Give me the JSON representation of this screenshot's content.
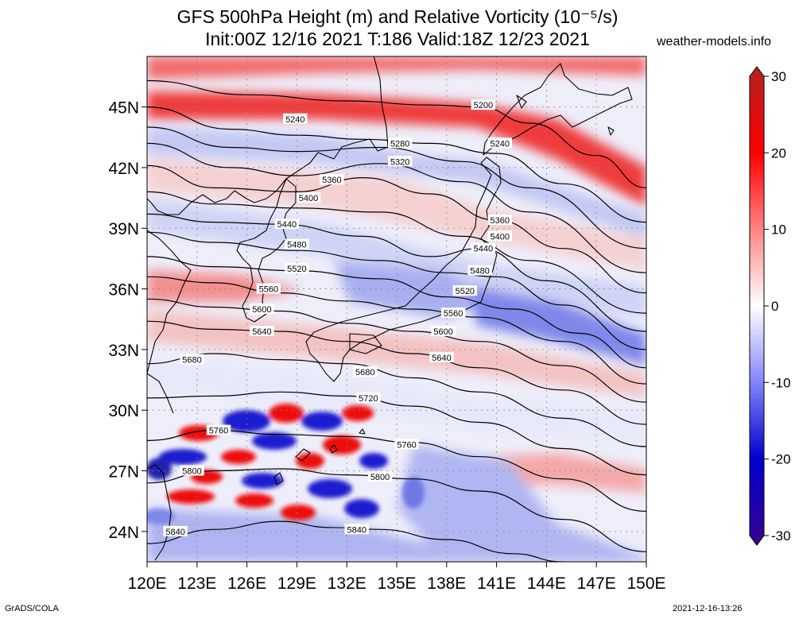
{
  "header": {
    "title_line1": "GFS 500hPa Height (m) and Relative Vorticity (10⁻⁵/s)",
    "title_line2": "Init:00Z 12/16 2021 T:186 Valid:18Z 12/23 2021",
    "site": "weather-models.info"
  },
  "footer": {
    "left": "GrADS/COLA",
    "right": "2021-12-16-13:26"
  },
  "map": {
    "lon_range": [
      120,
      150
    ],
    "lat_range": [
      22.5,
      47.5
    ],
    "lon_ticks": [
      {
        "v": 120,
        "label": "120E"
      },
      {
        "v": 123,
        "label": "123E"
      },
      {
        "v": 126,
        "label": "126E"
      },
      {
        "v": 129,
        "label": "129E"
      },
      {
        "v": 132,
        "label": "132E"
      },
      {
        "v": 135,
        "label": "135E"
      },
      {
        "v": 138,
        "label": "138E"
      },
      {
        "v": 141,
        "label": "141E"
      },
      {
        "v": 144,
        "label": "144E"
      },
      {
        "v": 147,
        "label": "147E"
      },
      {
        "v": 150,
        "label": "150E"
      }
    ],
    "lat_ticks": [
      {
        "v": 24,
        "label": "24N"
      },
      {
        "v": 27,
        "label": "27N"
      },
      {
        "v": 30,
        "label": "30N"
      },
      {
        "v": 33,
        "label": "33N"
      },
      {
        "v": 36,
        "label": "36N"
      },
      {
        "v": 39,
        "label": "39N"
      },
      {
        "v": 42,
        "label": "42N"
      },
      {
        "v": 45,
        "label": "45N"
      }
    ],
    "contours": [
      {
        "label": "5200",
        "pts": [
          [
            120,
            46.3
          ],
          [
            126,
            45.6
          ],
          [
            132,
            45.3
          ],
          [
            137,
            45.1
          ],
          [
            140,
            45.0
          ],
          [
            143,
            44.2
          ],
          [
            147,
            42.6
          ],
          [
            150,
            41.0
          ]
        ],
        "lab": [
          140.2,
          45.1
        ]
      },
      {
        "label": "5240",
        "pts": [
          [
            120,
            45.0
          ],
          [
            125,
            43.9
          ],
          [
            129,
            43.6
          ],
          [
            133,
            43.4
          ],
          [
            137,
            43.2
          ],
          [
            141,
            42.7
          ],
          [
            145,
            41.2
          ],
          [
            150,
            39.3
          ]
        ],
        "lab": [
          141.2,
          43.2
        ],
        "lab2": [
          128.9,
          44.4
        ]
      },
      {
        "label": "5280",
        "pts": [
          [
            120,
            44.0
          ],
          [
            125,
            43.0
          ],
          [
            129,
            42.8
          ],
          [
            134,
            43.0
          ],
          [
            139,
            42.3
          ],
          [
            143,
            41.0
          ],
          [
            150,
            38.0
          ]
        ],
        "lab": [
          135.2,
          43.2
        ]
      },
      {
        "label": "5320",
        "pts": [
          [
            120,
            43.2
          ],
          [
            125,
            42.0
          ],
          [
            129,
            41.6
          ],
          [
            134,
            42.2
          ],
          [
            139,
            41.3
          ],
          [
            143,
            39.8
          ],
          [
            150,
            36.8
          ]
        ],
        "lab": [
          135.2,
          42.3
        ]
      },
      {
        "label": "5360",
        "pts": [
          [
            120,
            42.1
          ],
          [
            124,
            41.0
          ],
          [
            129,
            40.8
          ],
          [
            133,
            41.5
          ],
          [
            137,
            40.7
          ],
          [
            141,
            39.4
          ],
          [
            145,
            38.0
          ],
          [
            150,
            35.8
          ]
        ],
        "lab": [
          131.1,
          41.4
        ],
        "lab2": [
          141.2,
          39.4
        ]
      },
      {
        "label": "5400",
        "pts": [
          [
            120,
            40.8
          ],
          [
            124,
            40.2
          ],
          [
            129,
            40.0
          ],
          [
            134,
            39.8
          ],
          [
            139,
            38.6
          ],
          [
            143,
            37.4
          ],
          [
            150,
            34.8
          ]
        ],
        "lab": [
          129.7,
          40.5
        ],
        "lab2": [
          141.2,
          38.6
        ]
      },
      {
        "label": "5440",
        "pts": [
          [
            120,
            39.7
          ],
          [
            124,
            39.3
          ],
          [
            128,
            39.2
          ],
          [
            133,
            38.6
          ],
          [
            137,
            37.6
          ],
          [
            140,
            38.0
          ],
          [
            144,
            36.4
          ],
          [
            150,
            33.9
          ]
        ],
        "lab": [
          128.4,
          39.2
        ],
        "lab2": [
          140.2,
          38.0
        ]
      },
      {
        "label": "5480",
        "pts": [
          [
            120,
            38.8
          ],
          [
            124,
            38.3
          ],
          [
            129,
            37.9
          ],
          [
            134,
            37.4
          ],
          [
            138,
            36.8
          ],
          [
            141,
            36.6
          ],
          [
            145,
            35.2
          ],
          [
            150,
            33.0
          ]
        ],
        "lab": [
          129.0,
          38.2
        ],
        "lab2": [
          140.0,
          36.9
        ]
      },
      {
        "label": "5520",
        "pts": [
          [
            120,
            37.6
          ],
          [
            124,
            37.1
          ],
          [
            129,
            36.9
          ],
          [
            134,
            36.5
          ],
          [
            138,
            35.6
          ],
          [
            142,
            35.0
          ],
          [
            146,
            33.8
          ],
          [
            150,
            32.1
          ]
        ],
        "lab": [
          129.0,
          37.0
        ],
        "lab2": [
          139.1,
          35.9
        ]
      },
      {
        "label": "5560",
        "pts": [
          [
            120,
            36.6
          ],
          [
            124,
            36.3
          ],
          [
            128,
            35.8
          ],
          [
            132,
            35.4
          ],
          [
            136,
            35.0
          ],
          [
            140,
            34.6
          ],
          [
            145,
            33.4
          ],
          [
            150,
            31.3
          ]
        ],
        "lab": [
          127.3,
          36.0
        ],
        "lab2": [
          138.4,
          34.8
        ]
      },
      {
        "label": "5600",
        "pts": [
          [
            120,
            35.5
          ],
          [
            124,
            35.1
          ],
          [
            128,
            34.9
          ],
          [
            132,
            34.3
          ],
          [
            136,
            33.9
          ],
          [
            140,
            33.4
          ],
          [
            145,
            32.2
          ],
          [
            150,
            30.4
          ]
        ],
        "lab": [
          126.9,
          35.0
        ],
        "lab2": [
          137.8,
          33.9
        ]
      },
      {
        "label": "5640",
        "pts": [
          [
            120,
            34.4
          ],
          [
            124,
            34.0
          ],
          [
            128,
            33.9
          ],
          [
            132,
            33.4
          ],
          [
            136,
            32.8
          ],
          [
            140,
            32.1
          ],
          [
            145,
            31.0
          ],
          [
            150,
            29.3
          ]
        ],
        "lab": [
          126.9,
          33.9
        ],
        "lab2": [
          137.7,
          32.6
        ]
      },
      {
        "label": "5680",
        "pts": [
          [
            120,
            32.3
          ],
          [
            124,
            32.8
          ],
          [
            128,
            32.5
          ],
          [
            132,
            32.3
          ],
          [
            136,
            31.6
          ],
          [
            140,
            30.9
          ],
          [
            145,
            29.6
          ],
          [
            150,
            28.2
          ]
        ],
        "lab": [
          122.7,
          32.5
        ],
        "lab2": [
          133.1,
          31.9
        ]
      },
      {
        "label": "5720",
        "pts": [
          [
            120,
            30.6
          ],
          [
            124,
            30.7
          ],
          [
            128,
            30.9
          ],
          [
            132,
            30.7
          ],
          [
            136,
            30.2
          ],
          [
            140,
            29.4
          ],
          [
            145,
            28.1
          ],
          [
            150,
            26.8
          ]
        ],
        "lab": [
          133.3,
          30.6
        ]
      },
      {
        "label": "5760",
        "pts": [
          [
            120,
            28.5
          ],
          [
            124,
            29.0
          ],
          [
            128,
            28.8
          ],
          [
            132,
            28.7
          ],
          [
            136,
            28.4
          ],
          [
            140,
            27.7
          ],
          [
            145,
            26.6
          ],
          [
            150,
            25.0
          ]
        ],
        "lab": [
          124.3,
          29.0
        ],
        "lab2": [
          135.6,
          28.3
        ]
      },
      {
        "label": "5800",
        "pts": [
          [
            120,
            26.4
          ],
          [
            124,
            27.0
          ],
          [
            128,
            27.1
          ],
          [
            132,
            26.8
          ],
          [
            136,
            26.6
          ],
          [
            140,
            26.0
          ],
          [
            145,
            24.6
          ],
          [
            150,
            23.0
          ]
        ],
        "lab": [
          122.7,
          27.0
        ],
        "lab2": [
          134.0,
          26.7
        ]
      },
      {
        "label": "5840",
        "pts": [
          [
            120,
            23.4
          ],
          [
            124,
            24.1
          ],
          [
            128,
            24.5
          ],
          [
            131,
            24.2
          ],
          [
            134,
            24.1
          ],
          [
            138,
            23.6
          ],
          [
            142,
            22.9
          ],
          [
            145,
            22.5
          ]
        ],
        "lab": [
          121.7,
          24.0
        ],
        "lab2": [
          132.6,
          24.1
        ]
      }
    ]
  },
  "colorbar": {
    "ticks": [
      {
        "v": 30,
        "label": "30"
      },
      {
        "v": 20,
        "label": "20"
      },
      {
        "v": 10,
        "label": "10"
      },
      {
        "v": 0,
        "label": "0"
      },
      {
        "v": -10,
        "label": "-10"
      },
      {
        "v": -20,
        "label": "-20"
      },
      {
        "v": -30,
        "label": "-30"
      }
    ],
    "colors": [
      "#b22222",
      "#ff0000",
      "#ff8080",
      "#ffffff",
      "#8080ff",
      "#0000cc",
      "#3a0090"
    ]
  }
}
